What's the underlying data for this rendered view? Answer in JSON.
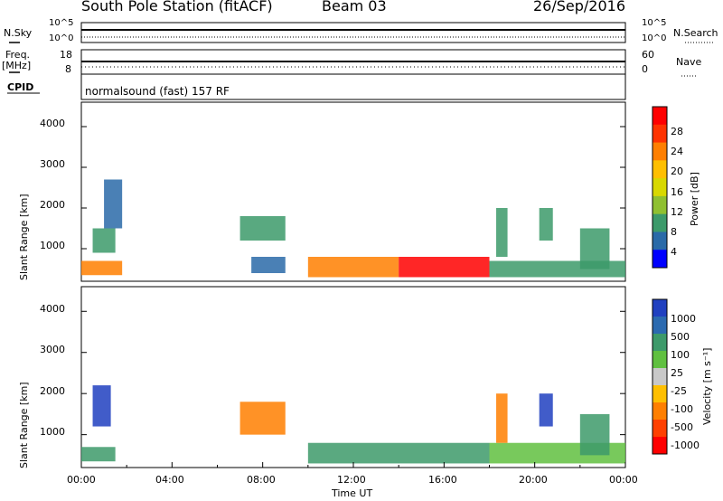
{
  "header": {
    "station": "South Pole Station (fitACF)",
    "beam": "Beam 03",
    "date": "26/Sep/2016"
  },
  "top_panels": {
    "nsky_label": "N.Sky",
    "nsky_ticks": [
      "10^5",
      "10^0"
    ],
    "nsearch_label": "N.Search",
    "nsearch_ticks": [
      "10^5",
      "10^0"
    ],
    "freq_label_1": "Freq.",
    "freq_label_2": "[MHz]",
    "freq_ticks": [
      "18",
      "8"
    ],
    "nave_label": "Nave",
    "nave_ticks": [
      "60",
      "0"
    ],
    "cpid_label": "CPID",
    "cpid_text": "normalsound (fast) 157 RF"
  },
  "x_axis": {
    "ticks": [
      "00:00",
      "04:00",
      "08:00",
      "12:00",
      "16:00",
      "20:00",
      "00:00"
    ],
    "label": "Time UT"
  },
  "chart_data": [
    {
      "type": "heatmap",
      "name": "power",
      "ylabel": "Slant Range [km]",
      "yticks": [
        "4000",
        "3000",
        "2000",
        "1000"
      ],
      "ylim": [
        200,
        4600
      ],
      "xlim_hours": [
        0,
        24
      ],
      "colorbar": {
        "label": "Power [dB]",
        "ticks": [
          "28",
          "24",
          "20",
          "16",
          "12",
          "8",
          "4"
        ],
        "colors": [
          "#ff0000",
          "#ff3300",
          "#ff7f00",
          "#ffbf00",
          "#d8d800",
          "#8fc030",
          "#3c9a6a",
          "#2a6aa8",
          "#0000ff"
        ]
      },
      "regions": [
        {
          "t0": 0.0,
          "t1": 1.8,
          "r0": 350,
          "r1": 700,
          "level": "high"
        },
        {
          "t0": 0.5,
          "t1": 1.5,
          "r0": 900,
          "r1": 1500,
          "level": "mid"
        },
        {
          "t0": 1.0,
          "t1": 1.8,
          "r0": 1500,
          "r1": 2700,
          "level": "low"
        },
        {
          "t0": 7.0,
          "t1": 9.0,
          "r0": 1200,
          "r1": 1800,
          "level": "mid"
        },
        {
          "t0": 7.5,
          "t1": 9.0,
          "r0": 400,
          "r1": 800,
          "level": "low"
        },
        {
          "t0": 10.0,
          "t1": 14.0,
          "r0": 300,
          "r1": 800,
          "level": "high"
        },
        {
          "t0": 14.0,
          "t1": 18.0,
          "r0": 300,
          "r1": 800,
          "level": "peak"
        },
        {
          "t0": 18.0,
          "t1": 24.0,
          "r0": 300,
          "r1": 700,
          "level": "mid"
        },
        {
          "t0": 18.3,
          "t1": 18.8,
          "r0": 800,
          "r1": 2000,
          "level": "mid"
        },
        {
          "t0": 20.2,
          "t1": 20.8,
          "r0": 1200,
          "r1": 2000,
          "level": "mid"
        },
        {
          "t0": 22.0,
          "t1": 23.3,
          "r0": 500,
          "r1": 1500,
          "level": "mid"
        }
      ]
    },
    {
      "type": "heatmap",
      "name": "velocity",
      "ylabel": "Slant Range [km]",
      "yticks": [
        "4000",
        "3000",
        "2000",
        "1000"
      ],
      "ylim": [
        200,
        4600
      ],
      "xlim_hours": [
        0,
        24
      ],
      "colorbar": {
        "label": "Velocity [m s⁻¹]",
        "ticks": [
          "1000",
          "500",
          "100",
          "25",
          "-25",
          "-100",
          "-500",
          "-1000"
        ],
        "colors": [
          "#2040c0",
          "#2b6ab0",
          "#3d9a6a",
          "#60c040",
          "#c8c8c8",
          "#ffbf00",
          "#ff7f00",
          "#ff4000",
          "#ff0000"
        ]
      },
      "regions": [
        {
          "t0": 0.0,
          "t1": 1.5,
          "r0": 350,
          "r1": 700,
          "level": "pos"
        },
        {
          "t0": 0.5,
          "t1": 1.3,
          "r0": 1200,
          "r1": 2200,
          "level": "posfast"
        },
        {
          "t0": 7.0,
          "t1": 9.0,
          "r0": 1000,
          "r1": 1800,
          "level": "neg"
        },
        {
          "t0": 10.0,
          "t1": 18.0,
          "r0": 300,
          "r1": 800,
          "level": "pos"
        },
        {
          "t0": 18.0,
          "t1": 24.0,
          "r0": 300,
          "r1": 800,
          "level": "poslight"
        },
        {
          "t0": 18.3,
          "t1": 18.8,
          "r0": 800,
          "r1": 2000,
          "level": "neg"
        },
        {
          "t0": 20.2,
          "t1": 20.8,
          "r0": 1200,
          "r1": 2000,
          "level": "posfast"
        },
        {
          "t0": 22.0,
          "t1": 23.3,
          "r0": 500,
          "r1": 1500,
          "level": "pos"
        }
      ]
    }
  ]
}
